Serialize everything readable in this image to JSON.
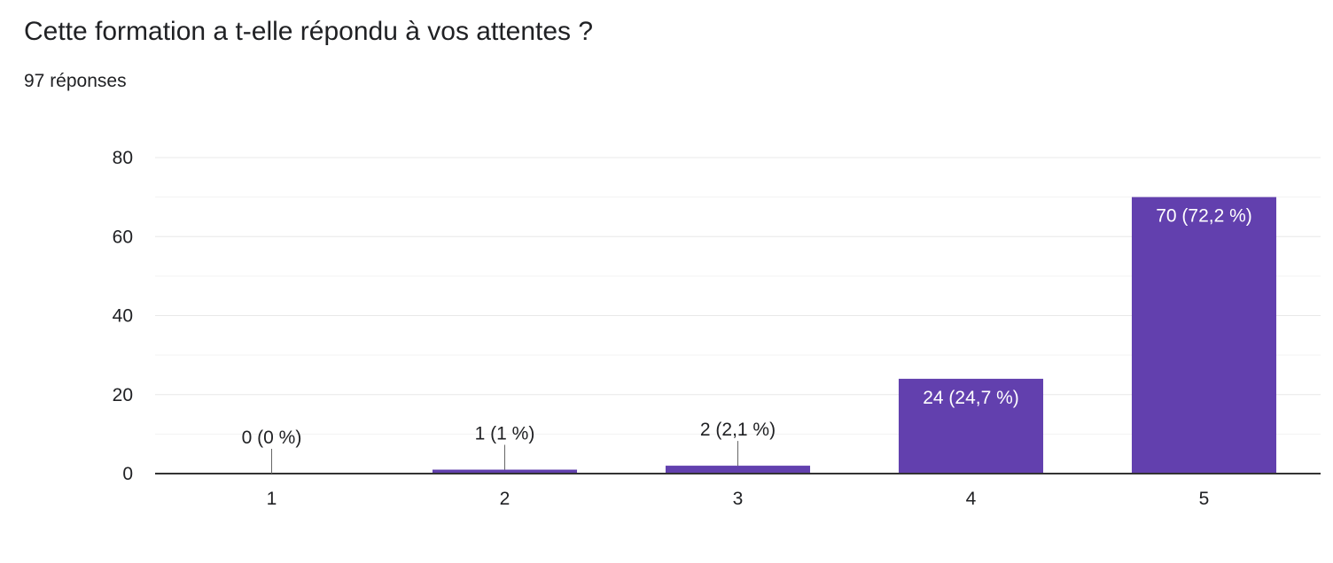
{
  "question": {
    "title": "Cette formation a t-elle répondu à vos attentes ?",
    "responses": "97 réponses"
  },
  "colors": {
    "bar": "#6240ae",
    "grid": "#e8e8e8",
    "axis": "#333333",
    "text": "#202124",
    "label_inside": "#ffffff"
  },
  "chart_data": {
    "type": "bar",
    "categories": [
      "1",
      "2",
      "3",
      "4",
      "5"
    ],
    "values": [
      0,
      1,
      2,
      24,
      70
    ],
    "data_labels": [
      "0 (0 %)",
      "1 (1 %)",
      "2 (2,1 %)",
      "24 (24,7 %)",
      "70 (72,2 %)"
    ],
    "yticks": [
      0,
      20,
      40,
      60,
      80
    ],
    "ylim": [
      0,
      80
    ],
    "grid": true,
    "legend": "none"
  }
}
